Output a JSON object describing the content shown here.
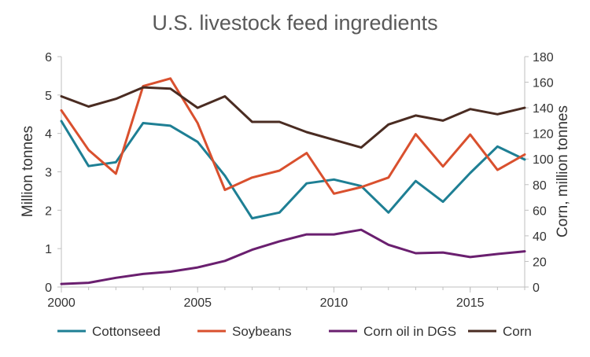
{
  "chart_data": {
    "type": "line",
    "title": "U.S. livestock feed ingredients",
    "xlabel": "",
    "ylabel": "Million tonnes",
    "ylabel_right": "Corn, million tonnes",
    "xlim": [
      2000,
      2017
    ],
    "ylim": [
      0,
      6
    ],
    "ylim_right": [
      0,
      180
    ],
    "x_ticks": [
      2000,
      2005,
      2010,
      2015
    ],
    "y_ticks": [
      0,
      1,
      2,
      3,
      4,
      5,
      6
    ],
    "y_ticks_right": [
      0,
      20,
      40,
      60,
      80,
      100,
      120,
      140,
      160,
      180
    ],
    "grid": false,
    "legend_position": "bottom",
    "x": [
      2000,
      2001,
      2002,
      2003,
      2004,
      2005,
      2006,
      2007,
      2008,
      2009,
      2010,
      2011,
      2012,
      2013,
      2014,
      2015,
      2016,
      2017
    ],
    "series": [
      {
        "name": "Cottonseed",
        "axis": "left",
        "color": "#1e7f94",
        "values": [
          4.32,
          3.15,
          3.25,
          4.27,
          4.2,
          3.78,
          2.9,
          1.79,
          1.94,
          2.7,
          2.8,
          2.63,
          1.94,
          2.76,
          2.22,
          2.97,
          3.66,
          3.32
        ]
      },
      {
        "name": "Soybeans",
        "axis": "left",
        "color": "#d9502e",
        "values": [
          4.6,
          3.57,
          2.95,
          5.23,
          5.43,
          4.27,
          2.53,
          2.85,
          3.03,
          3.49,
          2.43,
          2.6,
          2.85,
          3.98,
          3.14,
          3.97,
          3.05,
          3.45
        ]
      },
      {
        "name": "Corn oil in DGS",
        "axis": "left",
        "color": "#6a1f6f",
        "values": [
          0.08,
          0.11,
          0.24,
          0.34,
          0.4,
          0.51,
          0.68,
          0.97,
          1.19,
          1.37,
          1.37,
          1.49,
          1.1,
          0.88,
          0.9,
          0.78,
          0.86,
          0.93
        ]
      },
      {
        "name": "Corn",
        "axis": "right",
        "color": "#4a2c22",
        "values": [
          149,
          141,
          147,
          156,
          155,
          140,
          149,
          129,
          129,
          121,
          115,
          109,
          127,
          134,
          130,
          139,
          135,
          140
        ]
      }
    ]
  }
}
